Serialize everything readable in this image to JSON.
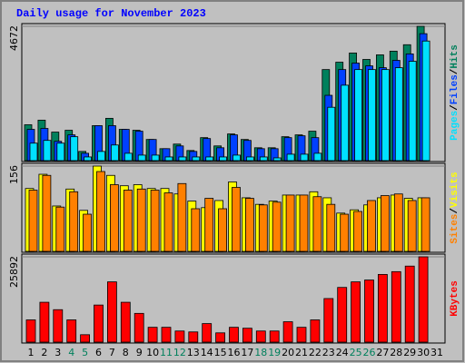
{
  "title": "Daily usage for November 2023",
  "legend_separator": "/",
  "chart_data": [
    {
      "type": "bar",
      "ylim": [
        0,
        4672
      ],
      "yticks": [
        4672
      ],
      "series": [
        {
          "name": "Hits",
          "color": "#00805c",
          "values": [
            1248,
            1408,
            992,
            1056,
            320,
            1216,
            1472,
            1088,
            1056,
            736,
            416,
            576,
            352,
            800,
            512,
            928,
            736,
            448,
            448,
            832,
            896,
            1024,
            3168,
            3424,
            3744,
            3520,
            3680,
            3808,
            4032,
            4672,
            0
          ]
        },
        {
          "name": "Files",
          "color": "#0040ff",
          "values": [
            1088,
            1120,
            672,
            896,
            256,
            1216,
            1216,
            1088,
            1024,
            736,
            416,
            512,
            320,
            768,
            448,
            896,
            704,
            416,
            416,
            800,
            864,
            800,
            2272,
            3168,
            3392,
            3296,
            3232,
            3488,
            3712,
            4416,
            0
          ]
        },
        {
          "name": "Pages",
          "color": "#00e0ff",
          "values": [
            608,
            704,
            608,
            832,
            128,
            320,
            544,
            256,
            192,
            192,
            128,
            128,
            128,
            128,
            128,
            192,
            128,
            128,
            96,
            224,
            224,
            256,
            1856,
            2624,
            3168,
            3168,
            3168,
            3232,
            3456,
            4160,
            0
          ]
        }
      ]
    },
    {
      "type": "bar",
      "ylim": [
        0,
        156
      ],
      "yticks": [
        156
      ],
      "series": [
        {
          "name": "Visits",
          "color": "#ffff00",
          "values": [
            115,
            141,
            83,
            114,
            75,
            156,
            139,
            120,
            122,
            115,
            115,
            105,
            92,
            80,
            93,
            127,
            98,
            86,
            92,
            103,
            103,
            109,
            98,
            70,
            76,
            85,
            98,
            103,
            97,
            98,
            0
          ]
        },
        {
          "name": "Sites",
          "color": "#ff8000",
          "values": [
            112,
            139,
            81,
            109,
            68,
            146,
            122,
            112,
            114,
            112,
            107,
            124,
            78,
            97,
            78,
            117,
            97,
            85,
            90,
            103,
            103,
            100,
            86,
            68,
            73,
            93,
            102,
            105,
            93,
            98,
            0
          ]
        }
      ]
    },
    {
      "type": "bar",
      "ylim": [
        0,
        25892
      ],
      "yticks": [
        25892
      ],
      "categories": [
        "1",
        "2",
        "3",
        "4",
        "5",
        "6",
        "7",
        "8",
        "9",
        "10",
        "11",
        "12",
        "13",
        "14",
        "15",
        "16",
        "17",
        "18",
        "19",
        "20",
        "21",
        "22",
        "23",
        "24",
        "25",
        "26",
        "27",
        "28",
        "29",
        "30",
        "31"
      ],
      "category_colors": [
        "#000000",
        "#000000",
        "#000000",
        "#00805c",
        "#00805c",
        "#000000",
        "#000000",
        "#000000",
        "#000000",
        "#000000",
        "#00805c",
        "#00805c",
        "#000000",
        "#000000",
        "#000000",
        "#000000",
        "#000000",
        "#00805c",
        "#00805c",
        "#000000",
        "#000000",
        "#000000",
        "#000000",
        "#000000",
        "#00805c",
        "#00805c",
        "#000000",
        "#000000",
        "#000000",
        "#000000",
        "#000000"
      ],
      "series": [
        {
          "name": "KBytes",
          "color": "#ff0000",
          "values": [
            6754,
            12101,
            9850,
            6754,
            2251,
            11257,
            18292,
            12101,
            8724,
            4503,
            4503,
            3377,
            3096,
            5629,
            2814,
            4503,
            4222,
            3377,
            3377,
            6191,
            4503,
            6754,
            13227,
            16604,
            18292,
            18855,
            20543,
            21389,
            23076,
            25892,
            0
          ]
        }
      ]
    }
  ]
}
